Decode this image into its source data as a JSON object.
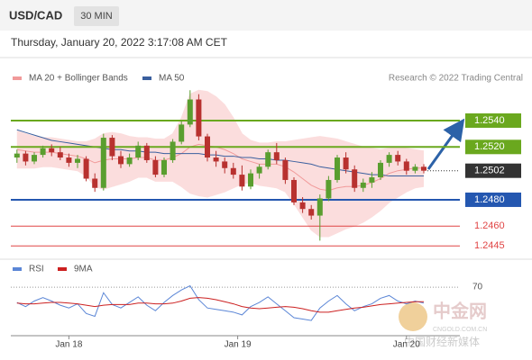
{
  "header": {
    "symbol": "USD/CAD",
    "interval": "30 MIN",
    "timestamp": "Thursday, January 20, 2022 3:17:08 AM CET"
  },
  "chart_data": {
    "type": "candlestick",
    "credit": "Research © 2022 Trading Central",
    "ylim": [
      1.2437,
      1.2585
    ],
    "xticks": [
      {
        "value": 6,
        "label": "Jan 18"
      },
      {
        "value": 25.5,
        "label": "Jan 19"
      },
      {
        "value": 45,
        "label": "Jan 20"
      }
    ],
    "up_color": "#5a9e2f",
    "down_color": "#b8312f",
    "open": [
      1.2512,
      1.2515,
      1.2509,
      1.2514,
      1.2519,
      1.2516,
      1.2512,
      1.2508,
      1.2511,
      1.2496,
      1.2489,
      1.2527,
      1.2513,
      1.2507,
      1.2512,
      1.2521,
      1.251,
      1.2499,
      1.251,
      1.2524,
      1.2537,
      1.2556,
      1.2528,
      1.2512,
      1.2509,
      1.2504,
      1.2499,
      1.249,
      1.25,
      1.2505,
      1.2516,
      1.251,
      1.2495,
      1.2478,
      1.2473,
      1.2468,
      1.2481,
      1.2495,
      1.2512,
      1.2503,
      1.2489,
      1.2493,
      1.2497,
      1.2508,
      1.2514,
      1.2509,
      1.2502,
      1.2505
    ],
    "high": [
      1.2518,
      1.2517,
      1.2516,
      1.2521,
      1.2522,
      1.252,
      1.2515,
      1.2514,
      1.2513,
      1.25,
      1.253,
      1.2529,
      1.2517,
      1.2515,
      1.2524,
      1.2523,
      1.2513,
      1.2512,
      1.2526,
      1.254,
      1.2563,
      1.256,
      1.253,
      1.2517,
      1.2512,
      1.2508,
      1.2506,
      1.2503,
      1.2507,
      1.2518,
      1.2523,
      1.2512,
      1.2497,
      1.2482,
      1.2476,
      1.2484,
      1.2498,
      1.2514,
      1.2516,
      1.2506,
      1.2496,
      1.2501,
      1.251,
      1.2516,
      1.2517,
      1.2511,
      1.2507,
      1.2507
    ],
    "low": [
      1.2508,
      1.2506,
      1.2507,
      1.2512,
      1.2513,
      1.251,
      1.2505,
      1.2504,
      1.2494,
      1.2486,
      1.2487,
      1.251,
      1.2504,
      1.2505,
      1.251,
      1.2508,
      1.2497,
      1.2497,
      1.2508,
      1.2522,
      1.2535,
      1.2525,
      1.2509,
      1.2505,
      1.25,
      1.2496,
      1.2487,
      1.2488,
      1.2496,
      1.2503,
      1.2507,
      1.2492,
      1.2476,
      1.247,
      1.2465,
      1.2449,
      1.2479,
      1.2493,
      1.25,
      1.2486,
      1.2486,
      1.2489,
      1.2495,
      1.2505,
      1.2506,
      1.2499,
      1.25,
      1.25
    ],
    "close": [
      1.2515,
      1.2509,
      1.2514,
      1.2519,
      1.2516,
      1.2512,
      1.2508,
      1.2511,
      1.2496,
      1.2489,
      1.2527,
      1.2513,
      1.2507,
      1.2512,
      1.2521,
      1.251,
      1.2499,
      1.251,
      1.2524,
      1.2537,
      1.2556,
      1.2528,
      1.2512,
      1.2509,
      1.2504,
      1.2499,
      1.249,
      1.25,
      1.2505,
      1.2516,
      1.251,
      1.2495,
      1.2478,
      1.2473,
      1.2468,
      1.2481,
      1.2495,
      1.2512,
      1.2503,
      1.2489,
      1.2493,
      1.2497,
      1.2508,
      1.2514,
      1.2509,
      1.2502,
      1.2505,
      1.2502
    ],
    "overlays": [
      {
        "name": "MA 20 + Bollinger Bands",
        "color": "#f19a9a",
        "band_color": "#fbdddd",
        "values": [
          1.2518,
          1.2517,
          1.2516,
          1.2516,
          1.2516,
          1.2515,
          1.2514,
          1.2513,
          1.2511,
          1.2508,
          1.251,
          1.2511,
          1.2511,
          1.2511,
          1.2512,
          1.2512,
          1.251,
          1.251,
          1.2512,
          1.2515,
          1.252,
          1.2522,
          1.2521,
          1.252,
          1.2518,
          1.2515,
          1.2511,
          1.2509,
          1.2507,
          1.2507,
          1.2507,
          1.2505,
          1.2501,
          1.2496,
          1.2491,
          1.2488,
          1.2487,
          1.2489,
          1.249,
          1.249,
          1.2491,
          1.2493,
          1.2496,
          1.25,
          1.2502,
          1.2503,
          1.2504,
          1.2504
        ],
        "upper": [
          1.2532,
          1.253,
          1.2528,
          1.2527,
          1.2527,
          1.2526,
          1.2525,
          1.2524,
          1.2524,
          1.2526,
          1.253,
          1.2531,
          1.253,
          1.2528,
          1.2527,
          1.2527,
          1.2526,
          1.2526,
          1.253,
          1.2542,
          1.256,
          1.2563,
          1.2562,
          1.2558,
          1.2552,
          1.2542,
          1.253,
          1.2525,
          1.2523,
          1.2523,
          1.2524,
          1.2524,
          1.2525,
          1.2526,
          1.2527,
          1.2528,
          1.2527,
          1.2526,
          1.2524,
          1.2522,
          1.252,
          1.2519,
          1.2518,
          1.2519,
          1.252,
          1.2519,
          1.2518,
          1.2517
        ],
        "lower": [
          1.2504,
          1.2504,
          1.2504,
          1.2505,
          1.2505,
          1.2504,
          1.2503,
          1.2502,
          1.2498,
          1.249,
          1.2488,
          1.249,
          1.2492,
          1.2494,
          1.2497,
          1.2497,
          1.2494,
          1.2494,
          1.2494,
          1.249,
          1.2485,
          1.2483,
          1.2482,
          1.2484,
          1.2486,
          1.2489,
          1.2492,
          1.2493,
          1.2491,
          1.249,
          1.2489,
          1.2486,
          1.2477,
          1.2467,
          1.2457,
          1.2452,
          1.2452,
          1.2455,
          1.2458,
          1.246,
          1.2463,
          1.2467,
          1.2472,
          1.2478,
          1.2482,
          1.2486,
          1.2489,
          1.249
        ]
      },
      {
        "name": "MA 50",
        "color": "#3a5f9e",
        "values": [
          1.2533,
          1.2531,
          1.2529,
          1.2527,
          1.2525,
          1.2524,
          1.2523,
          1.2522,
          1.2521,
          1.252,
          1.2519,
          1.2518,
          1.2518,
          1.2517,
          1.2517,
          1.2516,
          1.2516,
          1.2515,
          1.2515,
          1.2515,
          1.2515,
          1.2515,
          1.2514,
          1.2514,
          1.2513,
          1.2513,
          1.2512,
          1.2512,
          1.2511,
          1.2511,
          1.251,
          1.251,
          1.2509,
          1.2508,
          1.2507,
          1.2505,
          1.2504,
          1.2503,
          1.2502,
          1.2501,
          1.25,
          1.2499,
          1.2499,
          1.2498,
          1.2498,
          1.2498,
          1.2498,
          1.2498
        ]
      }
    ],
    "levels": [
      {
        "value": 1.254,
        "label": "1.2540",
        "color": "#6aa81e",
        "style": "box"
      },
      {
        "value": 1.252,
        "label": "1.2520",
        "color": "#6aa81e",
        "style": "box"
      },
      {
        "value": 1.2502,
        "label": "1.2502",
        "color": "#333333",
        "style": "current"
      },
      {
        "value": 1.248,
        "label": "1.2480",
        "color": "#2457b0",
        "style": "box"
      },
      {
        "value": 1.246,
        "label": "1.2460",
        "color": "#e04545",
        "style": "plain"
      },
      {
        "value": 1.2445,
        "label": "1.2445",
        "color": "#e04545",
        "style": "plain"
      }
    ],
    "rsi_panel": {
      "ylim": [
        0,
        100
      ],
      "yticks": [
        70
      ],
      "series": [
        {
          "name": "RSI",
          "color": "#5b86d6",
          "values": [
            48,
            42,
            50,
            55,
            50,
            44,
            40,
            46,
            32,
            28,
            62,
            45,
            40,
            48,
            56,
            44,
            36,
            48,
            58,
            66,
            72,
            52,
            40,
            38,
            36,
            34,
            30,
            42,
            48,
            56,
            46,
            36,
            26,
            24,
            22,
            40,
            50,
            58,
            46,
            36,
            42,
            46,
            54,
            58,
            50,
            46,
            50,
            47
          ]
        },
        {
          "name": "9MA",
          "color": "#cc2020",
          "values": [
            47,
            46,
            46,
            47,
            48,
            48,
            47,
            46,
            44,
            42,
            44,
            45,
            45,
            45,
            47,
            47,
            46,
            46,
            47,
            50,
            54,
            55,
            54,
            52,
            49,
            46,
            42,
            40,
            39,
            40,
            41,
            42,
            41,
            39,
            36,
            34,
            34,
            36,
            38,
            40,
            41,
            43,
            45,
            46,
            47,
            48,
            49,
            49
          ]
        }
      ]
    }
  },
  "watermark": {
    "brand": "中金网",
    "domain": "CNGOLD.COM.CN",
    "tagline": "中国财经新媒体"
  }
}
